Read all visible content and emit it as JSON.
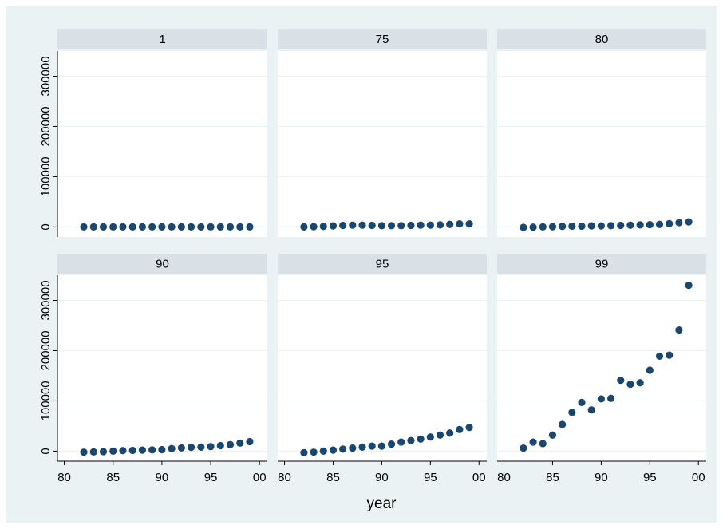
{
  "chart_data": {
    "type": "scatter",
    "xlabel": "year",
    "x": [
      82,
      83,
      84,
      85,
      86,
      87,
      88,
      89,
      90,
      91,
      92,
      93,
      94,
      95,
      96,
      97,
      98,
      99
    ],
    "xlim": [
      79.3,
      100.8
    ],
    "xticks": [
      80,
      85,
      90,
      95,
      {
        "value": 100,
        "label": "00"
      }
    ],
    "ylim": [
      -20000,
      350000
    ],
    "yticks": [
      0,
      100000,
      200000,
      300000
    ],
    "color": "#1a476f",
    "grid": true,
    "panels": [
      {
        "title": "1",
        "values": [
          0,
          0,
          0,
          0,
          0,
          0,
          0,
          0,
          0,
          0,
          0,
          0,
          0,
          0,
          0,
          0,
          0,
          0
        ]
      },
      {
        "title": "75",
        "values": [
          0,
          500,
          1000,
          2000,
          3000,
          3500,
          3500,
          3000,
          2500,
          2500,
          2500,
          3000,
          3500,
          3500,
          4000,
          5000,
          6000,
          6000
        ]
      },
      {
        "title": "80",
        "values": [
          -1000,
          -500,
          0,
          500,
          1000,
          1500,
          1500,
          2000,
          2000,
          2500,
          3000,
          3500,
          4000,
          4500,
          5000,
          6500,
          8500,
          10000
        ]
      },
      {
        "title": "90",
        "values": [
          -2000,
          -1500,
          -1000,
          0,
          1000,
          1500,
          2000,
          2500,
          3000,
          5000,
          6500,
          7500,
          8000,
          9000,
          11000,
          13000,
          16000,
          19000
        ]
      },
      {
        "title": "95",
        "values": [
          -3000,
          -2000,
          0,
          2000,
          4000,
          6000,
          8000,
          10000,
          10000,
          14000,
          18000,
          21000,
          24000,
          28000,
          32000,
          36000,
          43000,
          47000
        ]
      },
      {
        "title": "99",
        "values": [
          6000,
          18000,
          15000,
          32000,
          53000,
          77000,
          97000,
          82000,
          104000,
          105000,
          141000,
          133000,
          136000,
          161000,
          189000,
          191000,
          241000,
          330000
        ]
      }
    ]
  }
}
